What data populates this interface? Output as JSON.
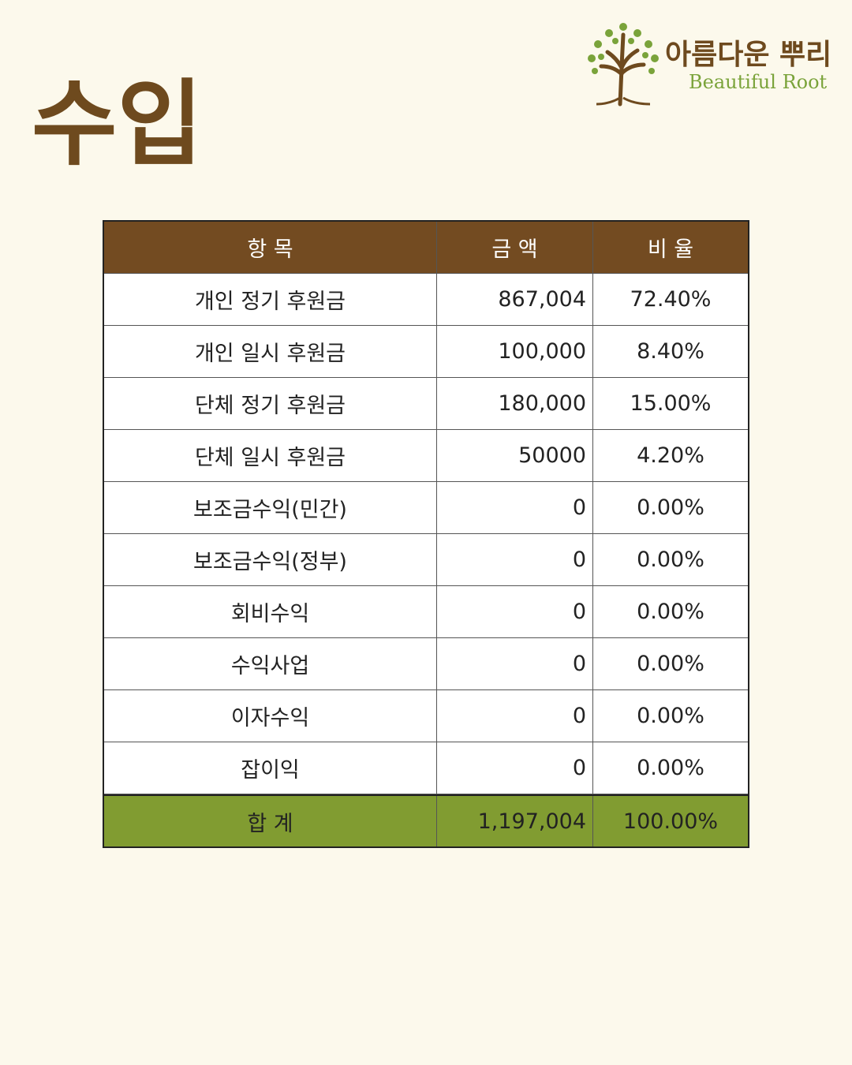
{
  "header": {
    "title": "수입",
    "logo": {
      "name": "아름다운 뿌리",
      "subtitle": "Beautiful Root"
    }
  },
  "table": {
    "columns": [
      "항 목",
      "금 액",
      "비 율"
    ],
    "rows": [
      [
        "개인 정기 후원금",
        "867,004",
        "72.40%"
      ],
      [
        "개인 일시 후원금",
        "100,000",
        "8.40%"
      ],
      [
        "단체 정기 후원금",
        "180,000",
        "15.00%"
      ],
      [
        "단체 일시 후원금",
        "50000",
        "4.20%"
      ],
      [
        "보조금수익(민간)",
        "0",
        "0.00%"
      ],
      [
        "보조금수익(정부)",
        "0",
        "0.00%"
      ],
      [
        "회비수익",
        "0",
        "0.00%"
      ],
      [
        "수익사업",
        "0",
        "0.00%"
      ],
      [
        "이자수익",
        "0",
        "0.00%"
      ],
      [
        "잡이익",
        "0",
        "0.00%"
      ]
    ],
    "total": [
      "합 계",
      "1,197,004",
      "100.00%"
    ]
  }
}
